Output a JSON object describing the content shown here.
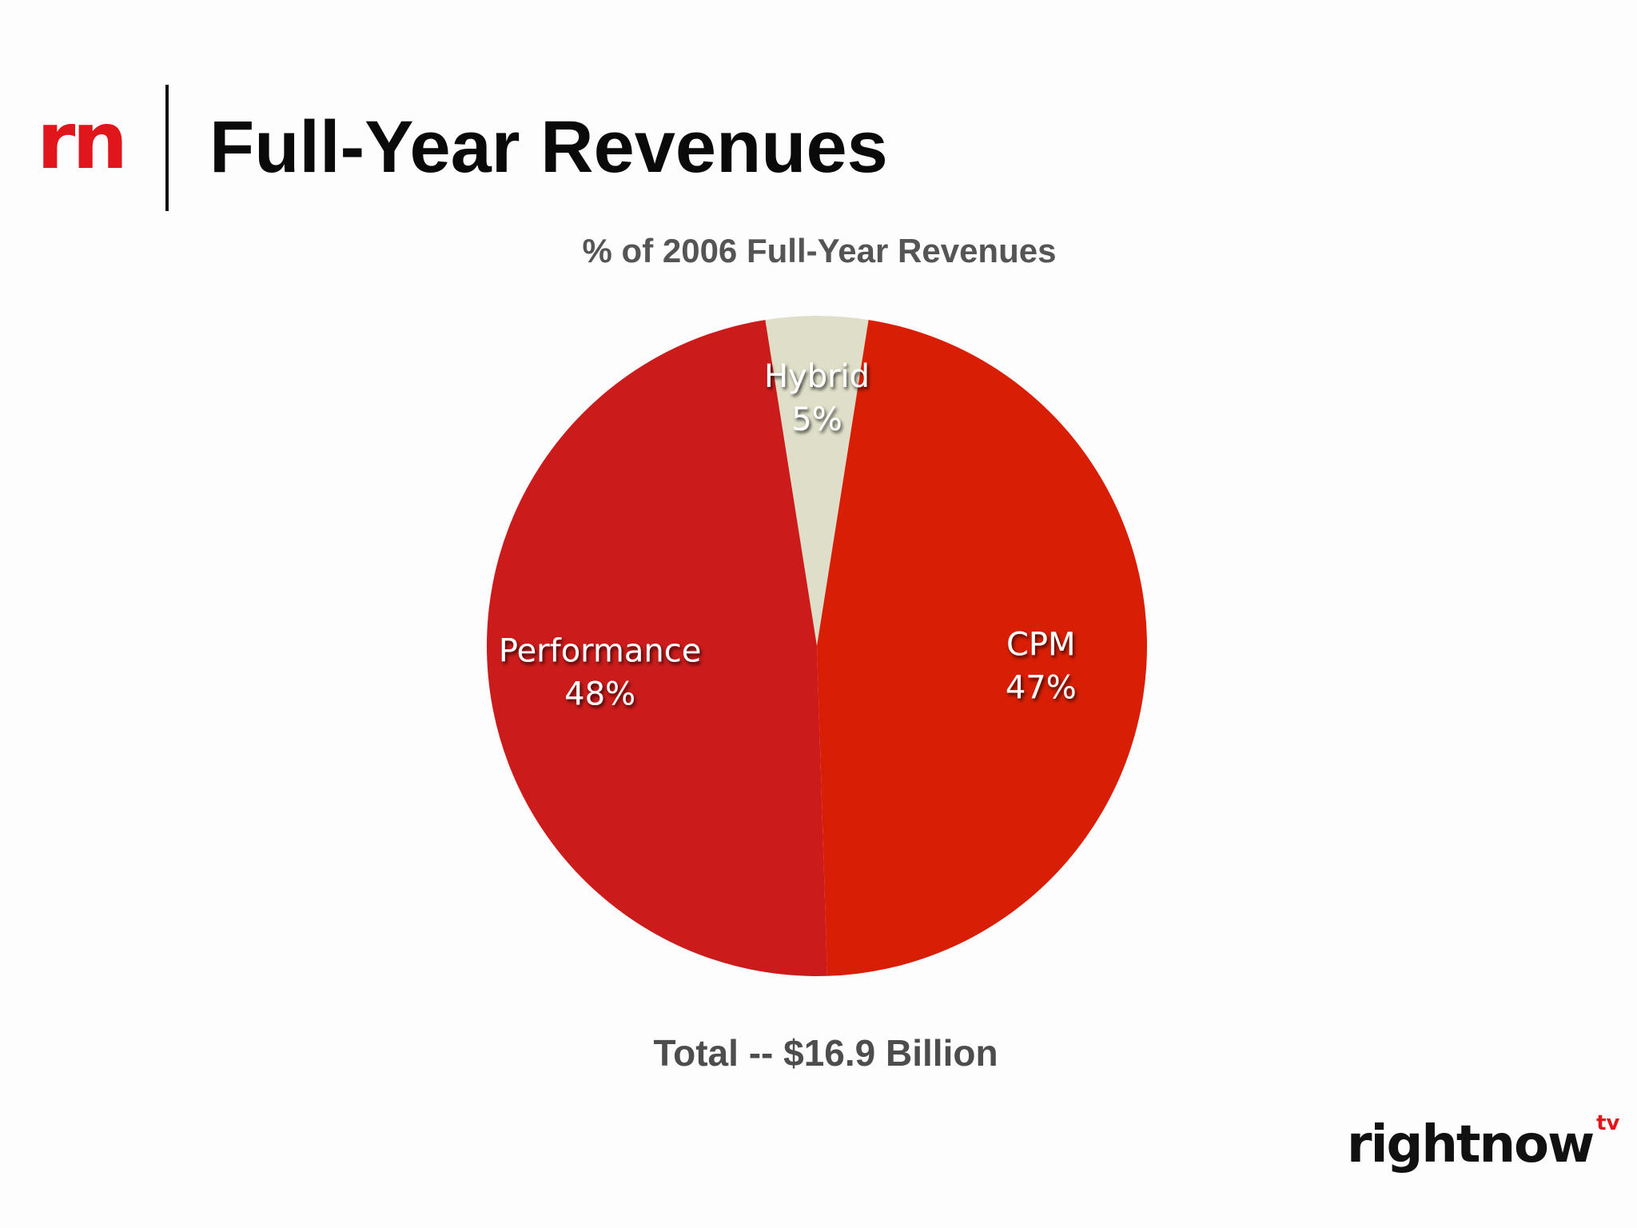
{
  "header": {
    "brand_mark": "rn",
    "title": "Full-Year Revenues"
  },
  "chart_data": {
    "type": "pie",
    "title": "% of 2006 Full-Year Revenues",
    "slices": [
      {
        "label": "Hybrid",
        "value": 5,
        "display": "5%",
        "color": "#dfdfc9"
      },
      {
        "label": "CPM",
        "value": 47,
        "display": "47%",
        "color": "#d81e04"
      },
      {
        "label": "Performance",
        "value": 48,
        "display": "48%",
        "color": "#cc1b1b"
      }
    ],
    "footer": "Total -- $16.9 Billion"
  },
  "footer_logo": {
    "text": "rightnow",
    "superscript": "tv"
  },
  "colors": {
    "accent": "#e0161b",
    "title_text": "#0a0a0a",
    "chart_text": "#555555",
    "background": "#fdfdfd"
  }
}
